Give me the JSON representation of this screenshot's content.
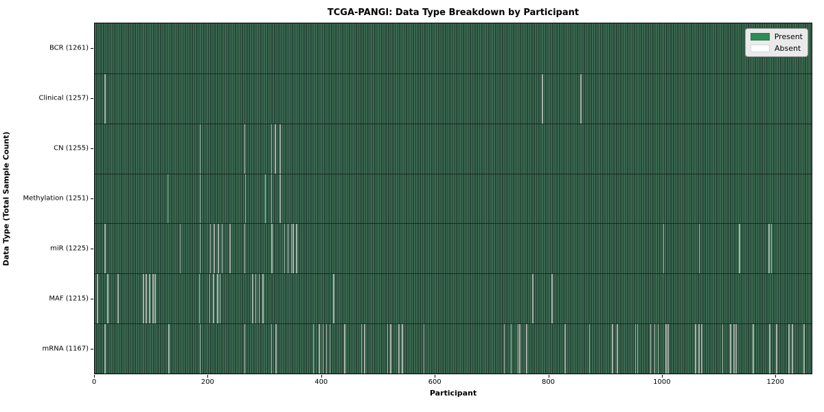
{
  "title": "TCGA-PANGI: Data Type Breakdown by Participant",
  "chart_data": {
    "type": "heatmap",
    "title": "TCGA-PANGI: Data Type Breakdown by Participant",
    "xlabel": "Participant",
    "ylabel": "Data Type (Total Sample Count)",
    "x_ticks": [
      0,
      200,
      400,
      600,
      800,
      1000,
      1200
    ],
    "xlim": [
      0,
      1265
    ],
    "total_participants": 1265,
    "grid": false,
    "legend": {
      "position": "upper right",
      "entries": [
        {
          "label": "Present",
          "color": "#2e8b57"
        },
        {
          "label": "Absent",
          "color": "#ffffff"
        }
      ]
    },
    "rows": [
      {
        "label": "BCR (1261)",
        "data_type": "BCR",
        "sample_count": 1261,
        "absent_participants": []
      },
      {
        "label": "Clinical (1257)",
        "data_type": "Clinical",
        "sample_count": 1257,
        "absent_participants": [
          17,
          18,
          789,
          857
        ]
      },
      {
        "label": "CN (1255)",
        "data_type": "CN",
        "sample_count": 1255,
        "absent_participants": [
          185,
          264,
          311,
          318,
          326
        ]
      },
      {
        "label": "Methylation (1251)",
        "data_type": "Methylation",
        "sample_count": 1251,
        "absent_participants": [
          128,
          185,
          265,
          300,
          311,
          326
        ]
      },
      {
        "label": "miR (1225)",
        "data_type": "miR",
        "sample_count": 1225,
        "absent_participants": [
          17,
          150,
          185,
          203,
          210,
          217,
          224,
          238,
          264,
          312,
          334,
          340,
          346,
          349,
          355,
          1003,
          1066,
          1137,
          1189,
          1193
        ]
      },
      {
        "label": "MAF (1215)",
        "data_type": "MAF",
        "sample_count": 1215,
        "absent_participants": [
          4,
          22,
          40,
          85,
          90,
          96,
          102,
          106,
          184,
          202,
          209,
          216,
          220,
          278,
          283,
          289,
          296,
          421,
          772,
          806
        ]
      },
      {
        "label": "mRNA (1167)",
        "data_type": "mRNA",
        "sample_count": 1167,
        "absent_participants": [
          17,
          130,
          185,
          264,
          311,
          319,
          385,
          395,
          402,
          408,
          414,
          440,
          470,
          475,
          516,
          521,
          536,
          542,
          580,
          722,
          734,
          746,
          749,
          761,
          829,
          872,
          913,
          921,
          953,
          957,
          980,
          987,
          993,
          1007,
          1011,
          1059,
          1065,
          1070,
          1107,
          1121,
          1127,
          1131,
          1161,
          1190,
          1202,
          1224,
          1230,
          1251
        ]
      }
    ],
    "colors": {
      "present_fill": "#2e8b57",
      "stripe_light": "#3c6a52",
      "stripe_dark": "#203f30",
      "absent_line": "#a9b3ac",
      "row_divider": "#16281e",
      "plot_border": "#000000",
      "legend_bg": "#eaeaea"
    }
  }
}
